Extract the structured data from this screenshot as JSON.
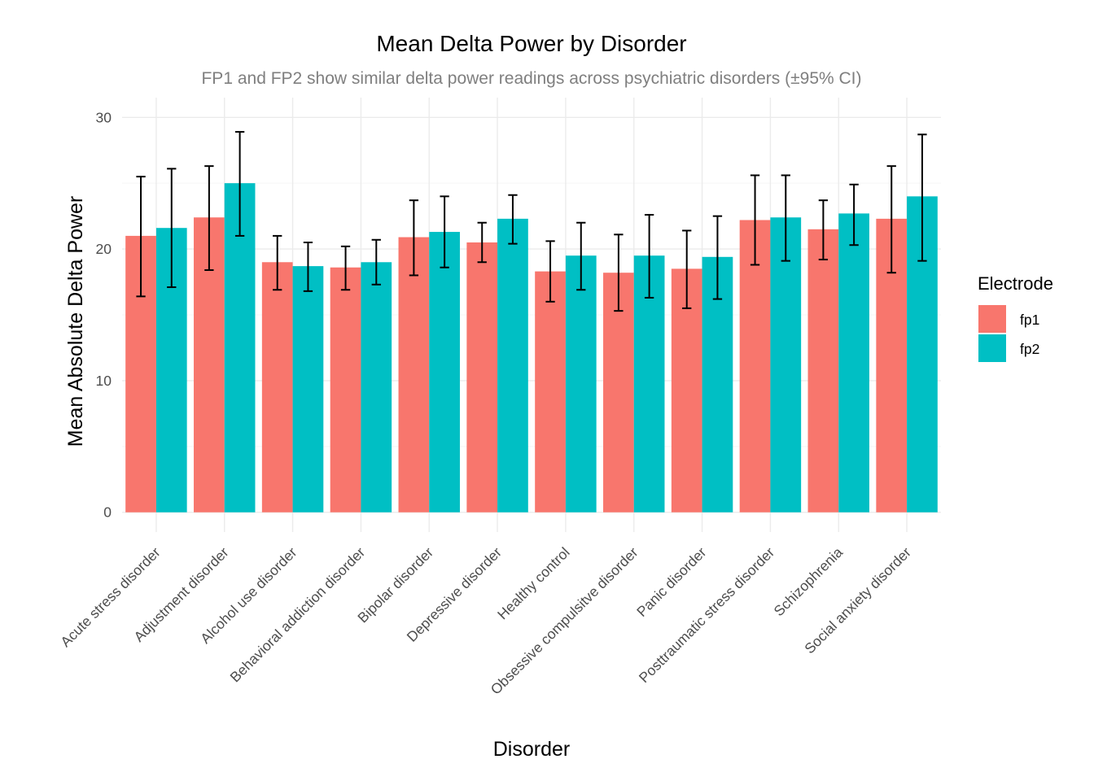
{
  "chart_data": {
    "type": "bar",
    "title": "Mean Delta Power by Disorder",
    "subtitle": "FP1 and FP2 show similar delta power readings across psychiatric disorders (±95% CI)",
    "xlabel": "Disorder",
    "ylabel": "Mean Absolute Delta Power",
    "ylim": [
      -1.5,
      31.5
    ],
    "yticks": [
      0,
      10,
      20,
      30
    ],
    "grid": true,
    "legend": {
      "title": "Electrode",
      "position": "right"
    },
    "categories": [
      "Acute stress disorder",
      "Adjustment disorder",
      "Alcohol use disorder",
      "Behavioral addiction disorder",
      "Bipolar disorder",
      "Depressive disorder",
      "Healthy control",
      "Obsessive compulsitve disorder",
      "Panic disorder",
      "Posttraumatic stress disorder",
      "Schizophrenia",
      "Social anxiety disorder"
    ],
    "series": [
      {
        "name": "fp1",
        "color": "#F8766D",
        "values": [
          21.0,
          22.4,
          19.0,
          18.6,
          20.9,
          20.5,
          18.3,
          18.2,
          18.5,
          22.2,
          21.5,
          22.3
        ],
        "ci_low": [
          16.4,
          18.4,
          16.9,
          16.9,
          18.0,
          19.0,
          16.0,
          15.3,
          15.5,
          18.8,
          19.2,
          18.2
        ],
        "ci_high": [
          25.5,
          26.3,
          21.0,
          20.2,
          23.7,
          22.0,
          20.6,
          21.1,
          21.4,
          25.6,
          23.7,
          26.3
        ]
      },
      {
        "name": "fp2",
        "color": "#00BFC4",
        "values": [
          21.6,
          25.0,
          18.7,
          19.0,
          21.3,
          22.3,
          19.5,
          19.5,
          19.4,
          22.4,
          22.7,
          24.0
        ],
        "ci_low": [
          17.1,
          21.0,
          16.8,
          17.3,
          18.6,
          20.4,
          16.9,
          16.3,
          16.2,
          19.1,
          20.3,
          19.1
        ],
        "ci_high": [
          26.1,
          28.9,
          20.5,
          20.7,
          24.0,
          24.1,
          22.0,
          22.6,
          22.5,
          25.6,
          24.9,
          28.7
        ]
      }
    ]
  }
}
